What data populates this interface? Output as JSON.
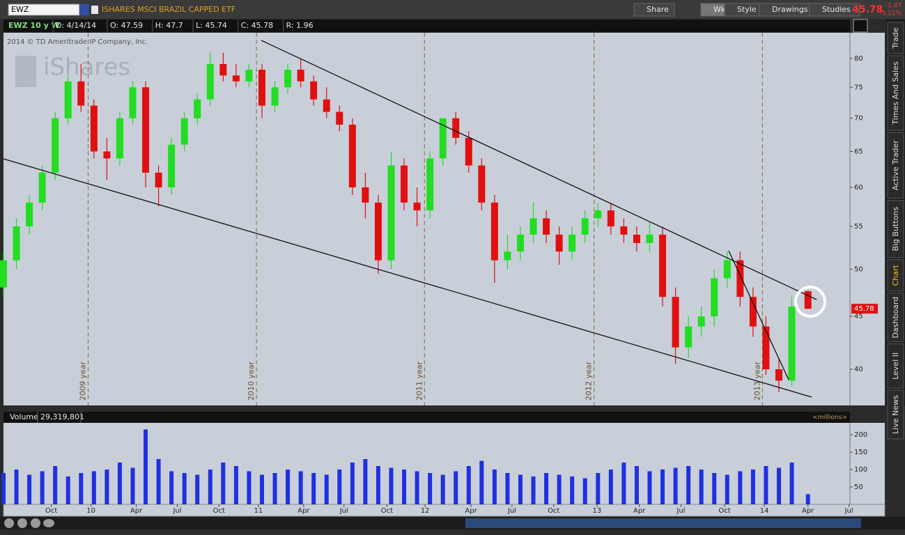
{
  "toolbar": {
    "symbol": "EWZ",
    "description": "ISHARES MSCI BRAZIL CAPPED ETF",
    "buttons": [
      "Share",
      "Wk",
      "Style",
      "Drawings",
      "Studies"
    ],
    "last": "45.78",
    "change": "-1.47",
    "change_pct": "-3.11%"
  },
  "header": {
    "study": "EWZ 10 y W",
    "fields": [
      "D: 4/14/14",
      "O: 47.59",
      "H: 47.7",
      "L: 45.74",
      "C: 45.78",
      "R: 1.96"
    ],
    "copyright": "2014 © TD Ameritrade IP Company, Inc.",
    "watermark": "iShares"
  },
  "volume_header": {
    "label": "Volume",
    "value": "29,319,801",
    "units": "<millions>"
  },
  "sidebar_tabs": [
    "Trade",
    "Times And Sales",
    "Active Trader",
    "Big Buttons",
    "Chart",
    "Dashboard",
    "Level II",
    "Live News"
  ],
  "chart_data": [
    {
      "type": "candlestick",
      "log_scale": true,
      "x": [
        0,
        4,
        8,
        12,
        16,
        20,
        24,
        28,
        32,
        36,
        40,
        44,
        48,
        52,
        56,
        60,
        64,
        68,
        72,
        76,
        80,
        84,
        88,
        92,
        96,
        100,
        104,
        108,
        112,
        116,
        120,
        124,
        128,
        132,
        136,
        140,
        144,
        148,
        152,
        156,
        160,
        164,
        168,
        172,
        176,
        180,
        184,
        188,
        192,
        196,
        200,
        204,
        208,
        212,
        216,
        220,
        224,
        228,
        232,
        236,
        240,
        244,
        249
      ],
      "open": [
        48,
        51,
        55,
        58,
        62,
        70,
        76,
        72,
        65,
        64,
        70,
        75,
        62,
        60,
        66,
        70,
        73,
        79,
        77,
        76,
        78,
        72,
        75,
        78,
        76,
        73,
        71,
        69,
        60,
        58,
        51,
        63,
        58,
        57,
        64,
        70,
        67,
        63,
        58,
        51,
        52,
        54,
        56,
        54,
        52,
        54,
        56,
        57,
        55,
        54,
        53,
        54,
        47,
        42,
        44,
        45,
        49,
        51,
        47,
        44,
        40,
        39,
        47.59
      ],
      "high": [
        52,
        56,
        59,
        63,
        71,
        77,
        79,
        73,
        67,
        71,
        76,
        76,
        63,
        67,
        71,
        74,
        81,
        81,
        79,
        79,
        79,
        76,
        79,
        80,
        77,
        75,
        72,
        70,
        62,
        59,
        65,
        64,
        60,
        65,
        70,
        71,
        68,
        64,
        59,
        54,
        55,
        58,
        57,
        55,
        55,
        57,
        58,
        58,
        56,
        55,
        55.5,
        55,
        48,
        45,
        46,
        50,
        52,
        52,
        48,
        45,
        41,
        47,
        47.7
      ],
      "low": [
        47,
        50,
        54,
        57,
        61,
        69,
        71,
        64,
        61,
        63,
        69,
        60,
        57.5,
        59,
        65,
        69,
        72,
        76,
        75,
        75,
        70,
        71,
        74,
        75,
        72,
        70,
        68,
        59,
        56,
        49.5,
        50,
        57,
        55,
        56,
        63,
        66,
        62,
        57,
        48.5,
        50,
        51,
        53,
        53,
        50.5,
        51,
        53,
        55,
        54,
        53,
        52,
        52,
        46,
        40.5,
        41,
        43,
        44,
        48,
        46,
        43,
        39.5,
        38,
        38.5,
        45.74
      ],
      "close": [
        51,
        55,
        58,
        62,
        70,
        76,
        72,
        65,
        64,
        70,
        75,
        62,
        60,
        66,
        70,
        73,
        79,
        77,
        76,
        78,
        72,
        75,
        78,
        76,
        73,
        71,
        69,
        60,
        58,
        51,
        63,
        58,
        57,
        64,
        70,
        67,
        63,
        58,
        51,
        52,
        54,
        56,
        54,
        52,
        54,
        56,
        57,
        55,
        54,
        53,
        54,
        47,
        42,
        44,
        45,
        49,
        51,
        47,
        44,
        40,
        39,
        46,
        45.78
      ],
      "up_color": "#22dd22",
      "down_color": "#e01010",
      "xlim": [
        0,
        262
      ],
      "ylim": [
        36.9,
        84.7
      ],
      "yticks": [
        40,
        45,
        50,
        55,
        60,
        65,
        70,
        75,
        80
      ],
      "year_markers": [
        {
          "value": 26.2,
          "label": "2009 year"
        },
        {
          "value": 78.3,
          "label": "2010 year"
        },
        {
          "value": 130.3,
          "label": "2011 year"
        },
        {
          "value": 182.8,
          "label": "2012 year"
        },
        {
          "value": 234.9,
          "label": "2013 year"
        }
      ]
    },
    {
      "type": "bar",
      "color": "#2030e0",
      "x": [
        0,
        4,
        8,
        12,
        16,
        20,
        24,
        28,
        32,
        36,
        40,
        44,
        48,
        52,
        56,
        60,
        64,
        68,
        72,
        76,
        80,
        84,
        88,
        92,
        96,
        100,
        104,
        108,
        112,
        116,
        120,
        124,
        128,
        132,
        136,
        140,
        144,
        148,
        152,
        156,
        160,
        164,
        168,
        172,
        176,
        180,
        184,
        188,
        192,
        196,
        200,
        204,
        208,
        212,
        216,
        220,
        224,
        228,
        232,
        236,
        240,
        244,
        249
      ],
      "values": [
        90,
        100,
        85,
        95,
        110,
        80,
        90,
        95,
        100,
        120,
        105,
        215,
        130,
        95,
        90,
        85,
        100,
        120,
        110,
        95,
        85,
        90,
        100,
        95,
        90,
        85,
        100,
        120,
        130,
        110,
        105,
        100,
        95,
        90,
        85,
        95,
        110,
        125,
        100,
        90,
        85,
        80,
        90,
        85,
        80,
        75,
        90,
        100,
        120,
        110,
        95,
        100,
        105,
        110,
        100,
        90,
        85,
        95,
        100,
        110,
        105,
        120,
        29.3198
      ],
      "xlim": [
        0,
        262
      ],
      "ylim": [
        0,
        234
      ],
      "yticks": [
        50,
        100,
        150,
        200
      ],
      "xticks": [
        {
          "value": 14.8,
          "label": "Oct"
        },
        {
          "value": 27.1,
          "label": "10"
        },
        {
          "value": 41.1,
          "label": "Apr"
        },
        {
          "value": 53.8,
          "label": "Jul"
        },
        {
          "value": 66.7,
          "label": "Oct"
        },
        {
          "value": 78.9,
          "label": "11"
        },
        {
          "value": 92.9,
          "label": "Apr"
        },
        {
          "value": 105.4,
          "label": "Jul"
        },
        {
          "value": 118.7,
          "label": "Oct"
        },
        {
          "value": 130.5,
          "label": "12"
        },
        {
          "value": 144.7,
          "label": "Apr"
        },
        {
          "value": 157.4,
          "label": "Jul"
        },
        {
          "value": 170.3,
          "label": "Oct"
        },
        {
          "value": 183.7,
          "label": "13"
        },
        {
          "value": 196.8,
          "label": "Apr"
        },
        {
          "value": 209.7,
          "label": "Jul"
        },
        {
          "value": 223.2,
          "label": "Oct"
        },
        {
          "value": 235.5,
          "label": "14"
        },
        {
          "value": 249,
          "label": "Apr"
        },
        {
          "value": 261.7,
          "label": "Jul"
        }
      ]
    }
  ]
}
